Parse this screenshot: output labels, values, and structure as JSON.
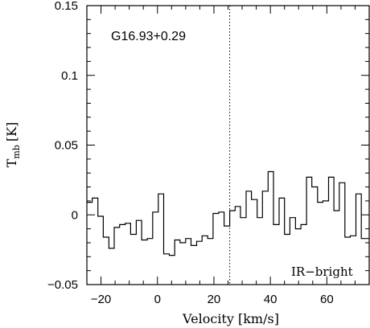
{
  "chart_data": {
    "type": "line",
    "style": "step",
    "source_label": "G16.93+0.29",
    "category_label": "IR−bright",
    "xlabel": "Velocity [km/s]",
    "ylabel_main": "T",
    "ylabel_sub": "mb",
    "ylabel_unit": "[K]",
    "xlim": [
      -25,
      75
    ],
    "ylim": [
      -0.05,
      0.15
    ],
    "xticks": [
      -20,
      0,
      20,
      40,
      60
    ],
    "yticks": [
      -0.05,
      0,
      0.05,
      0.1,
      0.15
    ],
    "xtick_labels": [
      "−20",
      "0",
      "20",
      "40",
      "60"
    ],
    "ytick_labels": [
      "−0.05",
      "0",
      "0.05",
      "0.1",
      "0.15"
    ],
    "vline_x": 25.6,
    "series": [
      {
        "x": [
          -25.0,
          -23.1,
          -21.1,
          -19.2,
          -17.2,
          -15.3,
          -13.4,
          -11.4,
          -9.5,
          -7.5,
          -5.6,
          -3.6,
          -1.7,
          0.3,
          2.2,
          4.2,
          6.1,
          8.0,
          10.0,
          11.9,
          13.9,
          15.8,
          17.8,
          19.7,
          21.7,
          23.6,
          25.6,
          27.5,
          29.4,
          31.4,
          33.3,
          35.3,
          37.2,
          39.2,
          41.1,
          43.1,
          45.0,
          46.9,
          48.9,
          50.8,
          52.8,
          54.7,
          56.7,
          58.6,
          60.6,
          62.5,
          64.4,
          66.4,
          68.3,
          70.3,
          72.2
        ],
        "y": [
          0.009,
          0.012,
          -0.001,
          -0.016,
          -0.024,
          -0.009,
          -0.007,
          -0.006,
          -0.014,
          -0.004,
          -0.018,
          -0.017,
          0.002,
          0.015,
          -0.028,
          -0.029,
          -0.018,
          -0.02,
          -0.017,
          -0.022,
          -0.019,
          -0.015,
          -0.017,
          0.001,
          0.002,
          -0.008,
          0.003,
          0.006,
          -0.002,
          0.017,
          0.011,
          -0.002,
          0.017,
          0.031,
          -0.007,
          0.012,
          -0.014,
          -0.002,
          -0.01,
          -0.007,
          0.027,
          0.02,
          0.009,
          0.01,
          0.027,
          0.003,
          0.023,
          -0.016,
          -0.015,
          0.015,
          -0.017
        ]
      }
    ]
  }
}
